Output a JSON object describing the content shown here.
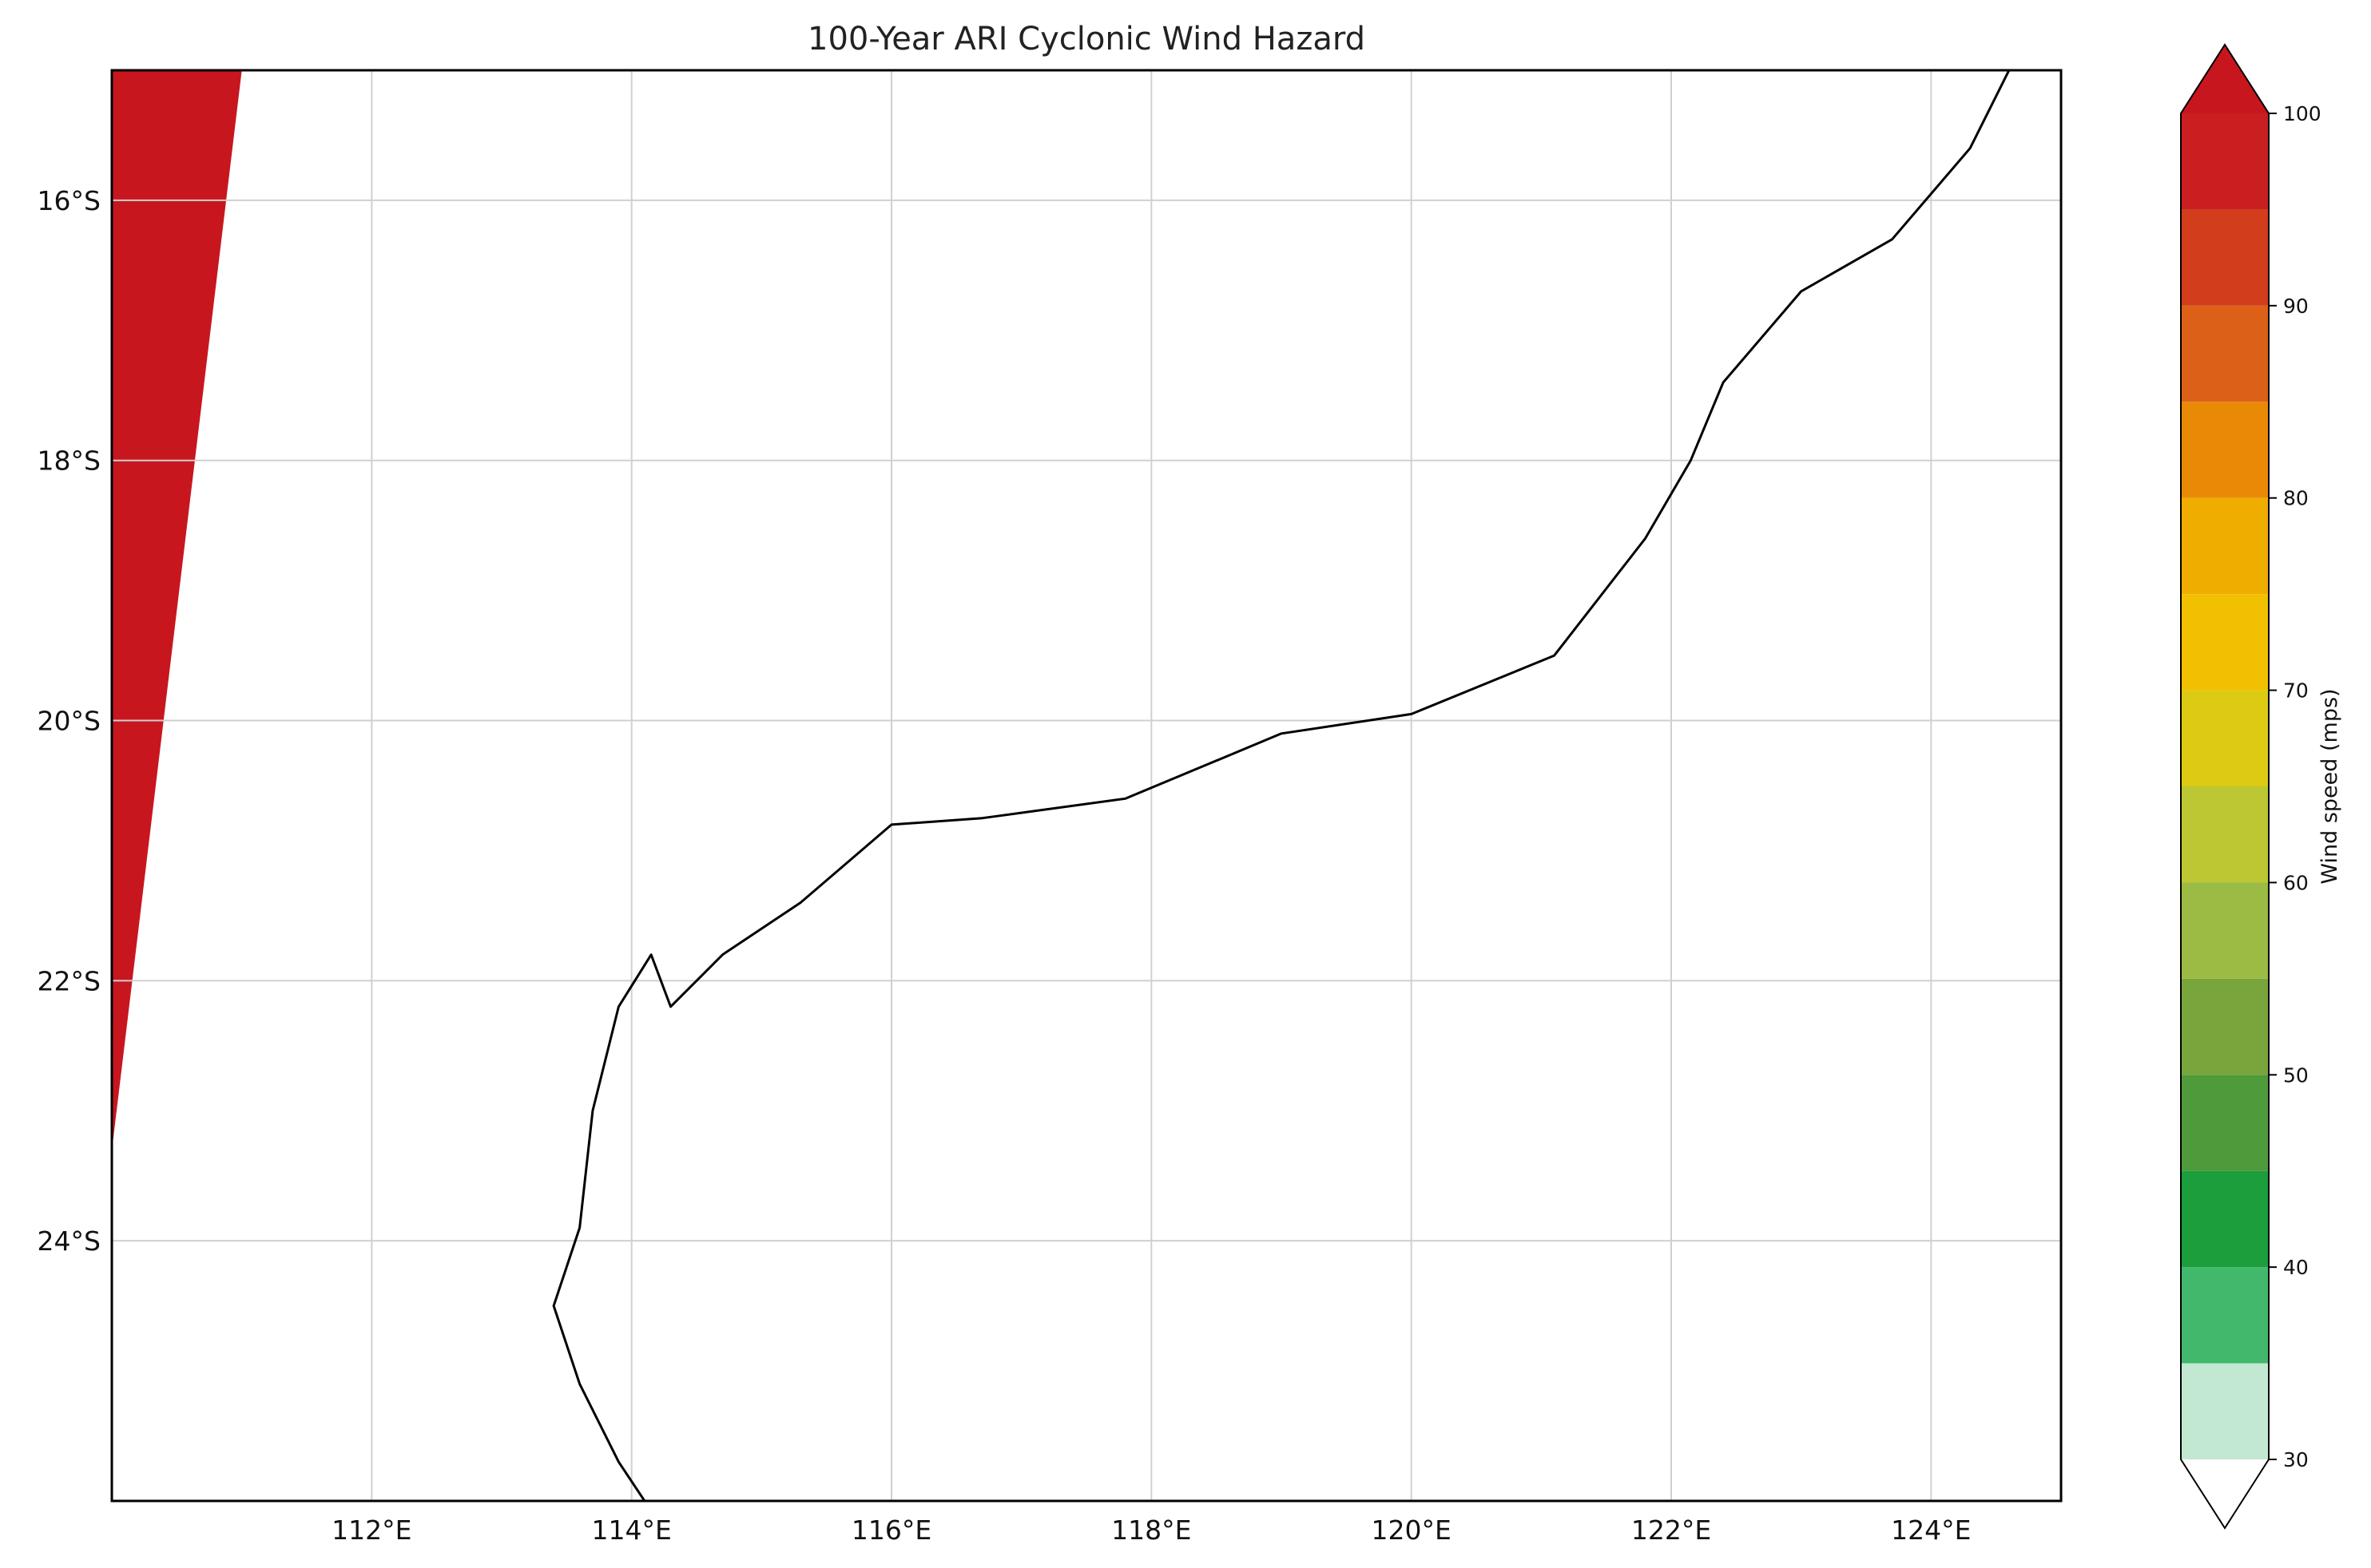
{
  "title": "100-Year ARI Cyclonic Wind Hazard",
  "map": {
    "lon_range": [
      110,
      125
    ],
    "lat_range": [
      -26,
      -15
    ],
    "lon_ticks": [
      112,
      114,
      116,
      118,
      120,
      122,
      124
    ],
    "lon_tick_labels": [
      "112°E",
      "114°E",
      "116°E",
      "118°E",
      "120°E",
      "122°E",
      "124°E"
    ],
    "lat_ticks": [
      -16,
      -18,
      -20,
      -22,
      -24
    ],
    "lat_tick_labels": [
      "16°S",
      "18°S",
      "20°S",
      "22°S",
      "24°S"
    ],
    "grid": true,
    "coastline": true
  },
  "colorbar": {
    "label": "Wind speed (mps)",
    "extend": "both",
    "levels": [
      30,
      35,
      40,
      45,
      50,
      55,
      60,
      65,
      70,
      75,
      80,
      85,
      90,
      95,
      100
    ],
    "colors": [
      "#c2e8d1",
      "#41b86b",
      "#1d9e3c",
      "#4f9a3a",
      "#79a63c",
      "#9bbb45",
      "#bcc733",
      "#dccb12",
      "#f1c000",
      "#efad00",
      "#e98a06",
      "#dd6018",
      "#d23d1c",
      "#c91f20"
    ],
    "under_color": "#ffffff",
    "over_color": "#c8161f",
    "tick_values": [
      30,
      40,
      50,
      60,
      70,
      80,
      90,
      100
    ],
    "tick_labels": [
      "30",
      "40",
      "50",
      "60",
      "70",
      "80",
      "90",
      "100"
    ]
  }
}
